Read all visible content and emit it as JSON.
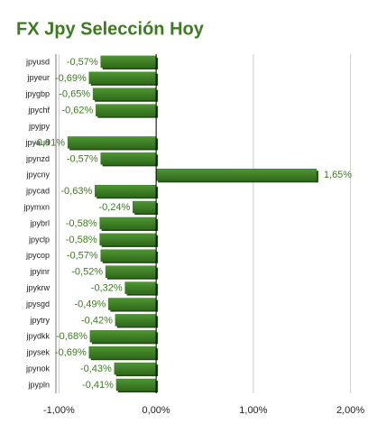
{
  "chart_data": {
    "type": "bar",
    "orientation": "horizontal",
    "title": "FX Jpy Selección Hoy",
    "categories": [
      "jpyusd",
      "jpyeur",
      "jpygbp",
      "jpychf",
      "jpyjpy",
      "jpyaud",
      "jpynzd",
      "jpycny",
      "jpycad",
      "jpymxn",
      "jpybrl",
      "jpyclp",
      "jpycop",
      "jpyinr",
      "jpykrw",
      "jpysgd",
      "jpytry",
      "jpydkk",
      "jpysek",
      "jpynok",
      "jpypln"
    ],
    "values": [
      -0.57,
      -0.69,
      -0.65,
      -0.62,
      null,
      -0.91,
      -0.57,
      1.65,
      -0.63,
      -0.24,
      -0.58,
      -0.58,
      -0.57,
      -0.52,
      -0.32,
      -0.49,
      -0.42,
      -0.68,
      -0.69,
      -0.43,
      -0.41
    ],
    "value_labels": [
      "-0,57%",
      "-0,69%",
      "-0,65%",
      "-0,62%",
      null,
      "-0,91%",
      "-0,57%",
      "1,65%",
      "-0,63%",
      "-0,24%",
      "-0,58%",
      "-0,58%",
      "-0,57%",
      "-0,52%",
      "-0,32%",
      "-0,49%",
      "-0,42%",
      "-0,68%",
      "-0,69%",
      "-0,43%",
      "-0,41%"
    ],
    "color": "#3a7a23",
    "xlim": [
      -1.05,
      2.05
    ],
    "xticks": [
      {
        "value": -1,
        "label": "-1,00%"
      },
      {
        "value": 0,
        "label": "0,00%"
      },
      {
        "value": 1,
        "label": "1,00%"
      },
      {
        "value": 2,
        "label": "2,00%"
      }
    ],
    "grid": true
  }
}
